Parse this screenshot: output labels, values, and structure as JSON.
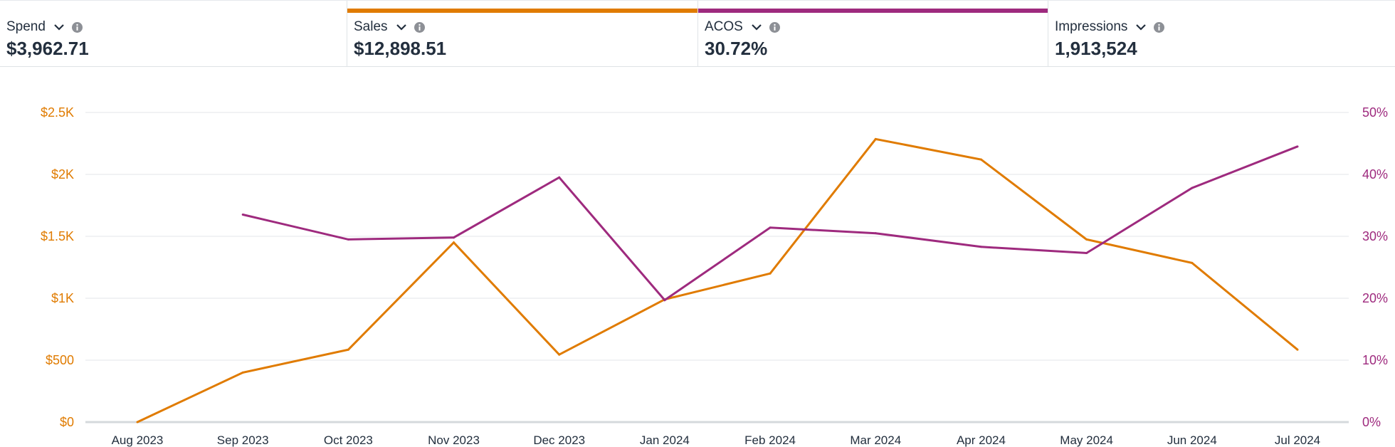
{
  "metrics": [
    {
      "label": "Spend",
      "value": "$3,962.71"
    },
    {
      "label": "Sales",
      "value": "$12,898.51"
    },
    {
      "label": "ACOS",
      "value": "30.72%"
    },
    {
      "label": "Impressions",
      "value": "1,913,524"
    }
  ],
  "colors": {
    "sales": "#e07b00",
    "acos": "#9e2a7e",
    "grid": "#e3e6e8",
    "baseline": "#d5d9dc"
  },
  "chart_data": {
    "type": "line",
    "x": [
      "Aug 2023",
      "Sep 2023",
      "Oct 2023",
      "Nov 2023",
      "Dec 2023",
      "Jan 2024",
      "Feb 2024",
      "Mar 2024",
      "Apr 2024",
      "May 2024",
      "Jun 2024",
      "Jul 2024"
    ],
    "y_left": {
      "ticks": [
        "$0",
        "$500",
        "$1K",
        "$1.5K",
        "$2K",
        "$2.5K"
      ],
      "range": [
        0,
        2500
      ]
    },
    "y_right": {
      "ticks": [
        "0%",
        "10%",
        "20%",
        "30%",
        "40%",
        "50%"
      ],
      "range": [
        0,
        50
      ]
    },
    "series": [
      {
        "name": "Sales",
        "axis": "left",
        "color": "#e07b00",
        "values": [
          0,
          400,
          585,
          1450,
          545,
          990,
          1200,
          2285,
          2120,
          1475,
          1285,
          585
        ]
      },
      {
        "name": "ACOS",
        "axis": "right",
        "color": "#9e2a7e",
        "values": [
          null,
          33.5,
          29.5,
          29.8,
          39.5,
          19.7,
          31.4,
          30.5,
          28.3,
          27.3,
          37.8,
          44.5
        ]
      }
    ],
    "grid": true
  }
}
